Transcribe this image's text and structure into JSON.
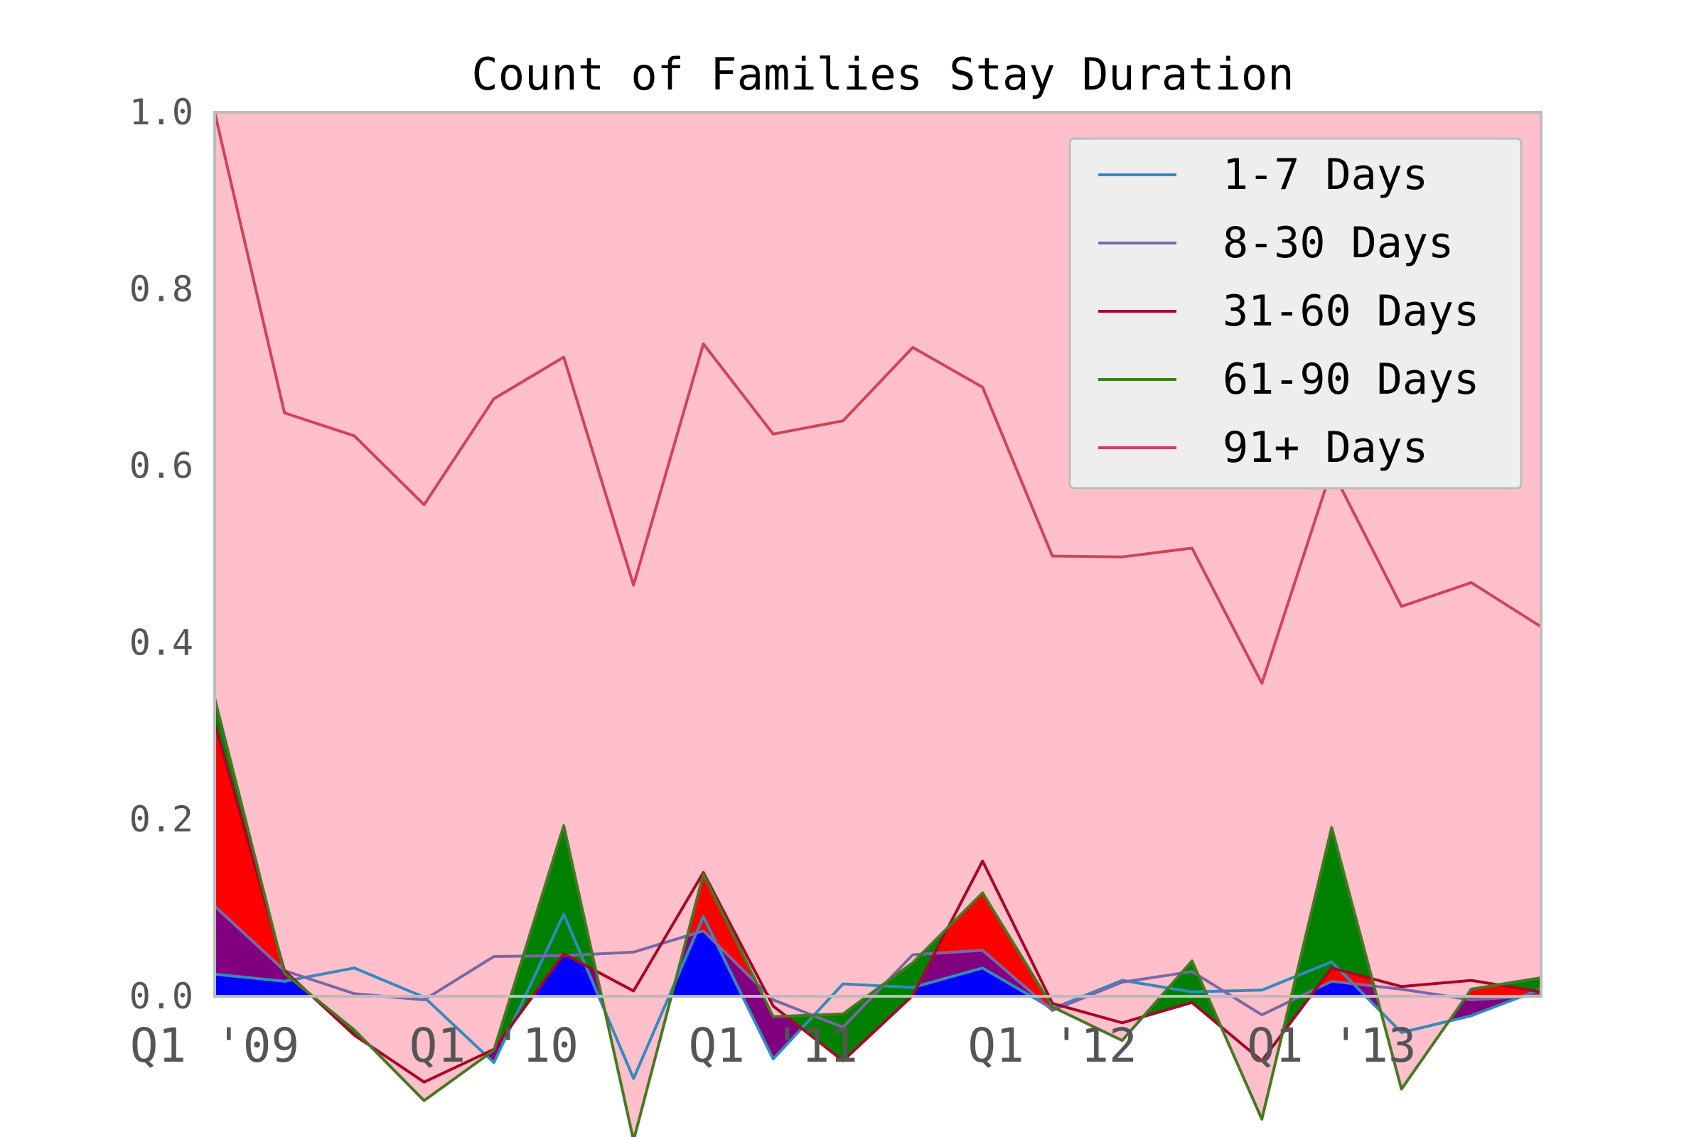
{
  "chart_data": {
    "type": "area",
    "stacked": true,
    "normalized": true,
    "title": "Count of Families Stay Duration",
    "xlabel": "",
    "ylabel": "",
    "ylim": [
      0,
      1
    ],
    "y_ticks": [
      "0.0",
      "0.2",
      "0.4",
      "0.6",
      "0.8",
      "1.0"
    ],
    "x_ticks": [
      {
        "index": 0,
        "label": "Q1 '09"
      },
      {
        "index": 4,
        "label": "Q1 '10"
      },
      {
        "index": 8,
        "label": "Q1 '11"
      },
      {
        "index": 12,
        "label": "Q1 '12"
      },
      {
        "index": 16,
        "label": "Q1 '13"
      }
    ],
    "grid": false,
    "legend_position": "top-right",
    "background": "#ffc0cb",
    "series": [
      {
        "name": "1-7 Days",
        "fill": "#0000ff",
        "line": "#348abd",
        "values": [
          0.025,
          0.017,
          0.032,
          -0.001,
          -0.075,
          0.093,
          -0.093,
          0.09,
          -0.071,
          0.014,
          0.01,
          0.032,
          -0.014,
          0.018,
          0.005,
          0.007,
          0.039,
          -0.041,
          -0.022,
          0.008
        ]
      },
      {
        "name": "8-30 Days",
        "fill": "#800080",
        "line": "#7a68a6",
        "values": [
          0.077,
          0.012,
          -0.029,
          -0.003,
          0.12,
          -0.047,
          0.143,
          -0.016,
          0.067,
          -0.049,
          0.037,
          0.02,
          -0.002,
          -0.002,
          0.023,
          -0.028,
          -0.022,
          0.049,
          0.018,
          -0.007
        ]
      },
      {
        "name": "31-60 Days",
        "fill": "#ff0000",
        "line": "#a60628",
        "values": [
          0.207,
          0.0,
          -0.047,
          -0.093,
          -0.105,
          0.002,
          -0.044,
          0.066,
          -0.007,
          -0.038,
          -0.046,
          0.101,
          0.008,
          -0.046,
          -0.035,
          -0.052,
          0.015,
          0.003,
          0.022,
          0.004
        ]
      },
      {
        "name": "61-90 Days",
        "fill": "#008000",
        "line": "#467821",
        "values": [
          0.028,
          -0.003,
          0.006,
          -0.021,
          -0.001,
          0.145,
          -0.169,
          -0.002,
          -0.012,
          0.053,
          0.037,
          -0.036,
          -0.004,
          -0.02,
          0.047,
          -0.066,
          0.159,
          -0.116,
          -0.01,
          0.016
        ]
      },
      {
        "name": "91+ Days",
        "fill": "#ffc0cb",
        "line": "#cf4457",
        "values": [
          0.663,
          0.634,
          0.672,
          0.674,
          0.737,
          0.53,
          0.628,
          0.6,
          0.659,
          0.671,
          0.696,
          0.572,
          0.51,
          0.547,
          0.467,
          0.493,
          0.405,
          0.546,
          0.46,
          0.397
        ]
      }
    ]
  }
}
